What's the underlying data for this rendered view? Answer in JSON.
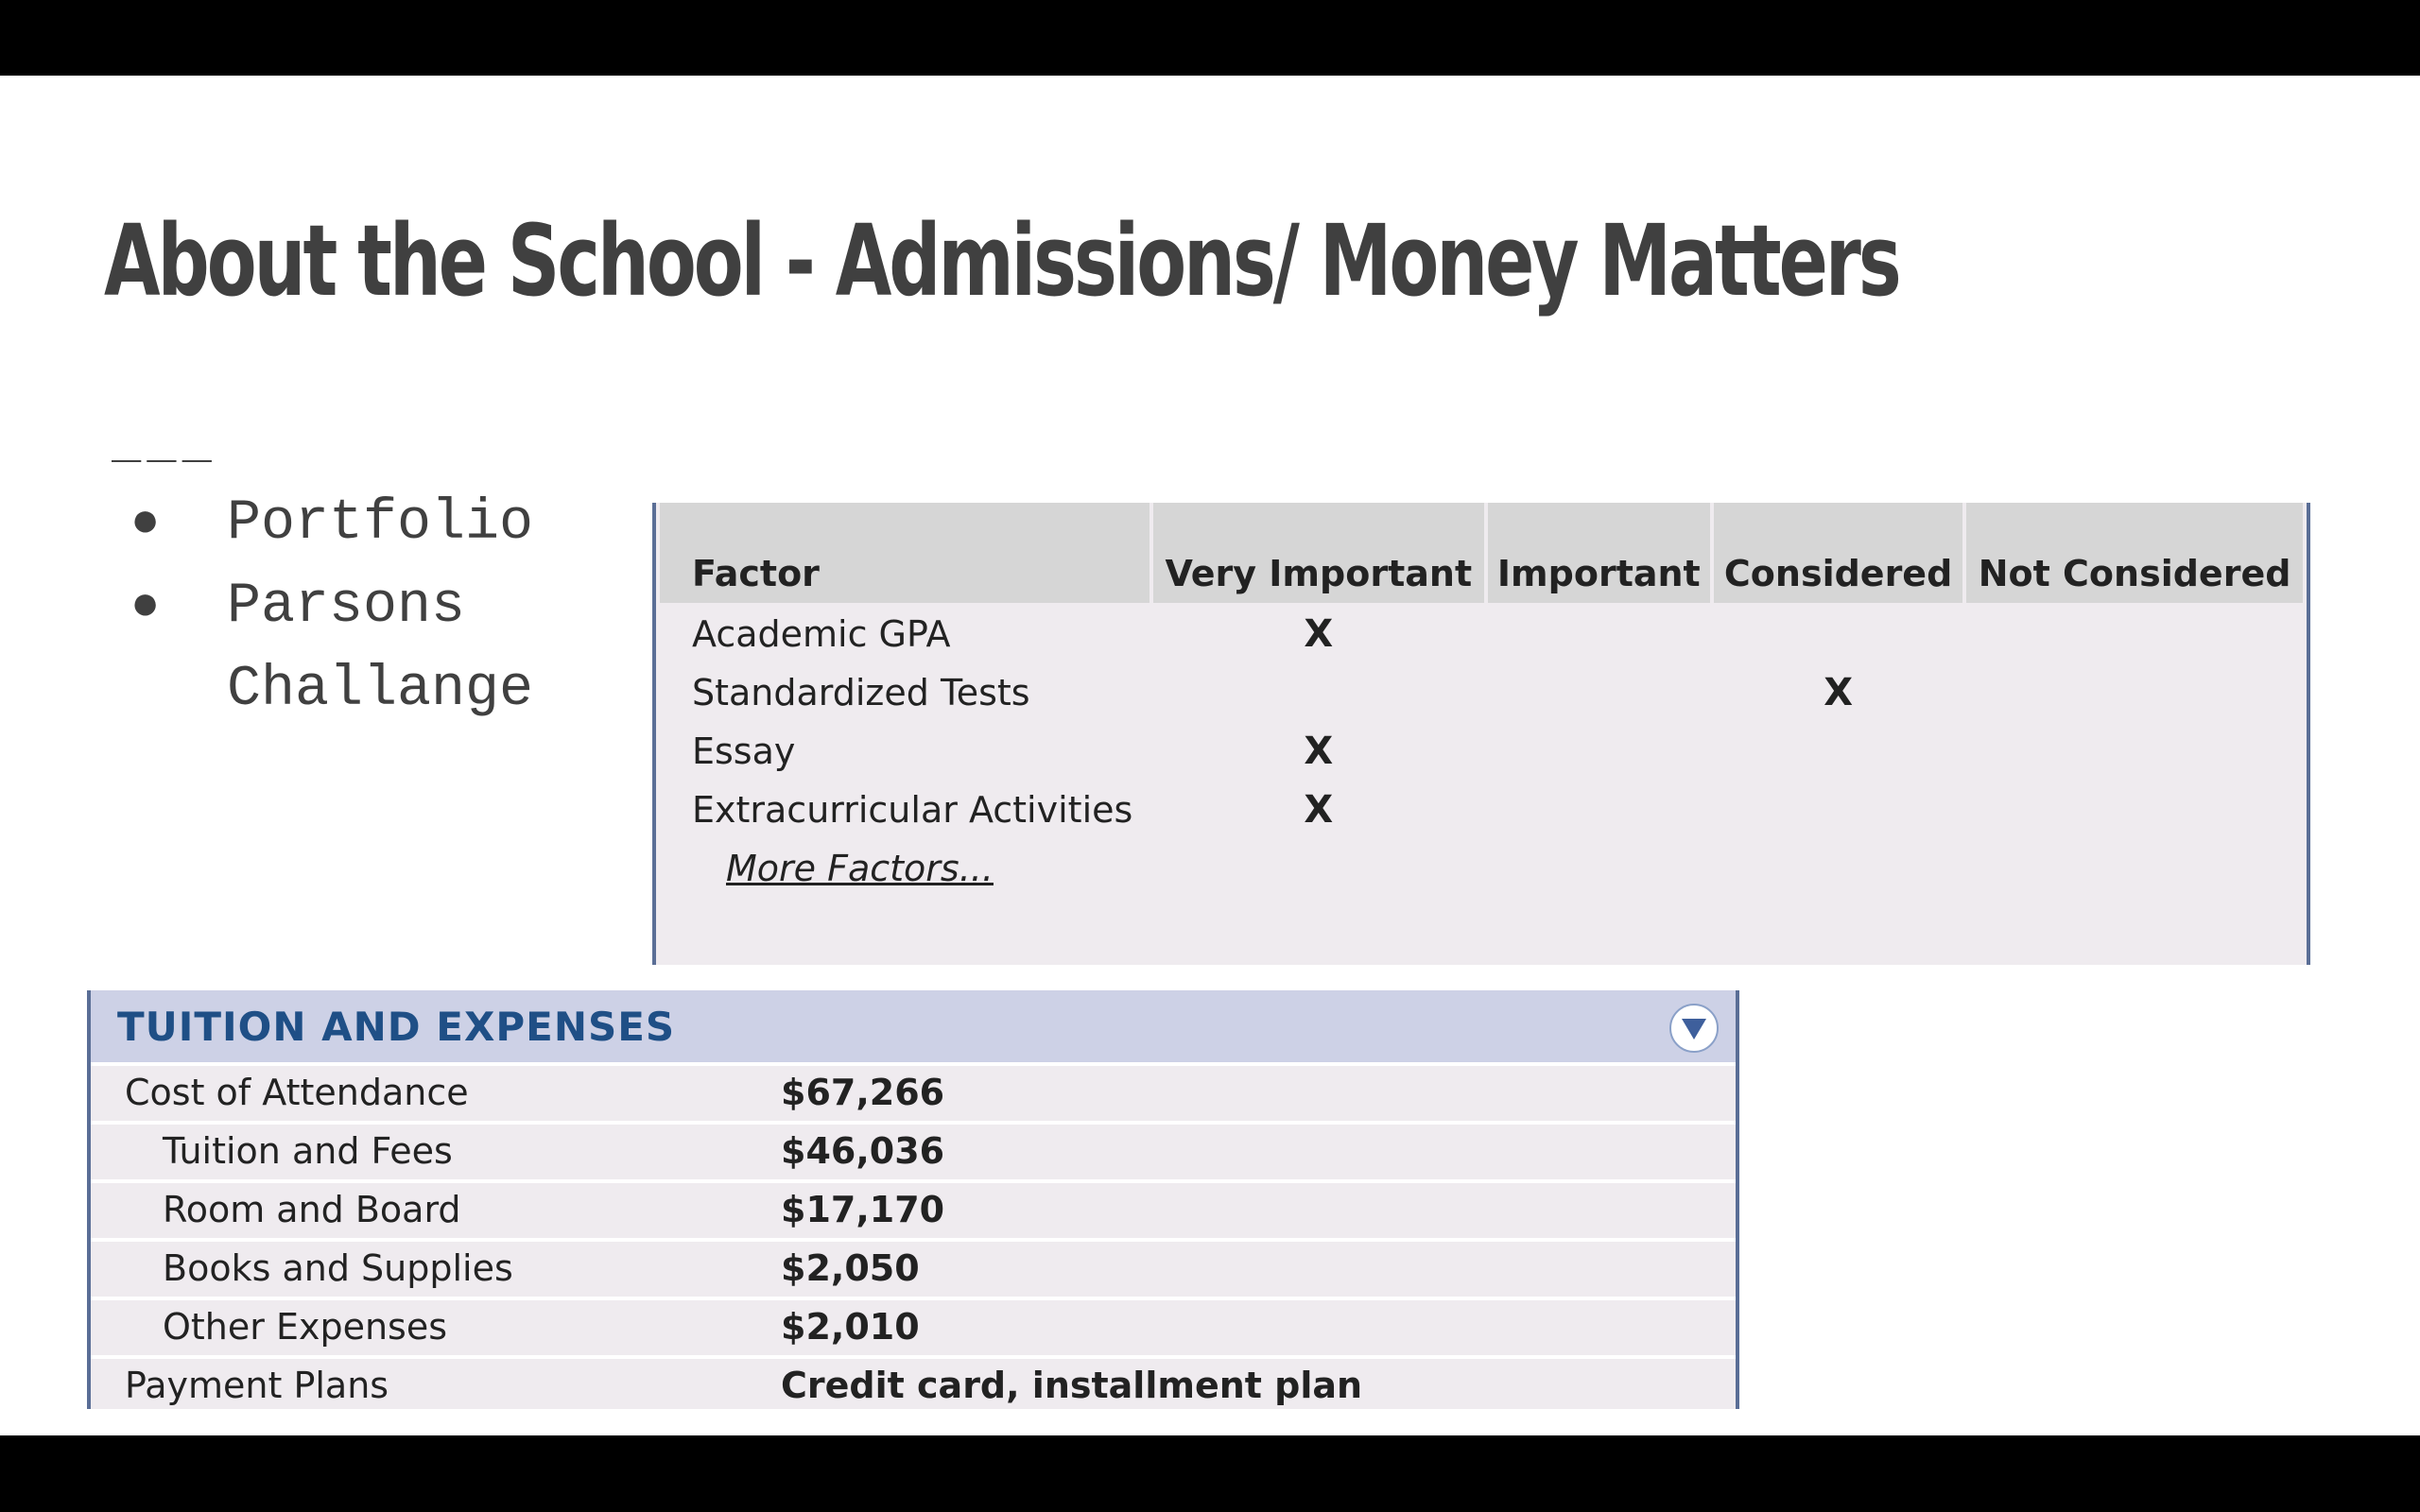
{
  "slide": {
    "title": "About the School - Admissions/ Money Matters",
    "divider": "___",
    "bullets": [
      {
        "marker": "●",
        "text": "Portfolio"
      },
      {
        "marker": "●",
        "text": "Parsons Challange"
      }
    ]
  },
  "admissions_table": {
    "headers": [
      "Factor",
      "Very Important",
      "Important",
      "Considered",
      "Not Considered"
    ],
    "rows": [
      {
        "factor": "Academic GPA",
        "marks": [
          "X",
          "",
          "",
          ""
        ]
      },
      {
        "factor": "Standardized Tests",
        "marks": [
          "",
          "",
          "X",
          ""
        ]
      },
      {
        "factor": "Essay",
        "marks": [
          "X",
          "",
          "",
          ""
        ]
      },
      {
        "factor": "Extracurricular Activities",
        "marks": [
          "X",
          "",
          "",
          ""
        ]
      }
    ],
    "more_link": "More Factors..."
  },
  "tuition": {
    "title": "TUITION AND EXPENSES",
    "collapse_icon": "chevron-down-circle-icon",
    "rows": [
      {
        "label": "Cost of Attendance",
        "value": "$67,266"
      },
      {
        "label": "Tuition and Fees",
        "value": "$46,036"
      },
      {
        "label": "Room and Board",
        "value": "$17,170"
      },
      {
        "label": "Books and Supplies",
        "value": "$2,050"
      },
      {
        "label": "Other Expenses",
        "value": "$2,010"
      },
      {
        "label": "Payment Plans",
        "value": "Credit card, installment plan"
      }
    ]
  },
  "colors": {
    "title_text": "#404040",
    "table_border": "#5a6e96",
    "header_band": "#cdd1e6",
    "header_text": "#1f4f86"
  }
}
